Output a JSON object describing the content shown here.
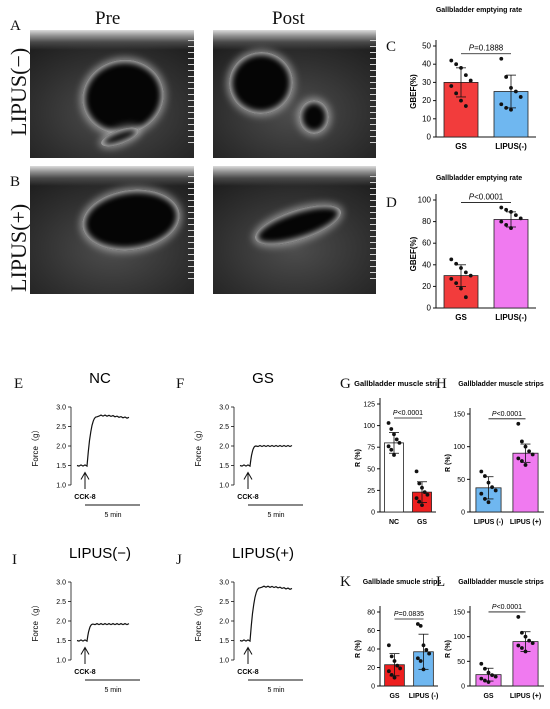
{
  "figure": {
    "panel_letters": [
      "A",
      "B",
      "C",
      "D",
      "E",
      "F",
      "G",
      "H",
      "I",
      "J",
      "K",
      "L"
    ],
    "col_pre": "Pre",
    "col_post": "Post",
    "row_minus": "LIPUS(−)",
    "row_plus": "LIPUS(+)"
  },
  "traces": [
    {
      "letter": "E",
      "title": "NC",
      "ylabel": "Force（g）",
      "ticks": [
        "3.0",
        "2.5",
        "2.0",
        "1.5",
        "1.0"
      ],
      "baseline": 1.5,
      "plateau": 2.75,
      "stim": "CCK-8",
      "scale": "5 min"
    },
    {
      "letter": "F",
      "title": "GS",
      "ylabel": "Force（g）",
      "ticks": [
        "3.0",
        "2.5",
        "2.0",
        "1.5",
        "1.0"
      ],
      "baseline": 1.5,
      "plateau": 2.0,
      "stim": "CCK-8",
      "scale": "5 min"
    },
    {
      "letter": "G",
      "title": "LIPUS(−)",
      "ylabel": "Force（g）",
      "ticks": [
        "3.0",
        "2.5",
        "2.0",
        "1.5",
        "1.0"
      ],
      "baseline": 1.5,
      "plateau": 1.92,
      "stim": "CCK-8",
      "scale": "5 min"
    },
    {
      "letter": "H",
      "title": "LIPUS(+)",
      "ylabel": "Force（g）",
      "ticks": [
        "3.0",
        "2.5",
        "2.0",
        "1.5",
        "1.0"
      ],
      "baseline": 1.5,
      "plateau": 2.85,
      "stim": "CCK-8",
      "scale": "5 min"
    }
  ],
  "chart_data": [
    {
      "letter": "C",
      "type": "bar",
      "title": "Gallbladder emptying rate",
      "ylabel": "GBEF(%)",
      "ylim": [
        0,
        50
      ],
      "yticks": [
        0,
        10,
        20,
        30,
        40,
        50
      ],
      "categories": [
        "GS",
        "LIPUS(-)"
      ],
      "values": [
        30,
        25
      ],
      "errors": [
        8,
        9
      ],
      "pvalue": "P=0.1888",
      "colors": [
        "#f23c3c",
        "#6fb7f0"
      ],
      "points": [
        [
          42,
          40,
          38,
          34,
          31,
          28,
          24,
          20,
          17
        ],
        [
          43,
          33,
          27,
          25,
          22,
          18,
          16,
          15
        ]
      ]
    },
    {
      "letter": "D",
      "type": "bar",
      "title": "Gallbladder emptying rate",
      "ylabel": "GBEF(%)",
      "ylim": [
        0,
        100
      ],
      "yticks": [
        0,
        20,
        40,
        60,
        80,
        100
      ],
      "categories": [
        "GS",
        "LIPUS(-)"
      ],
      "values": [
        30,
        82
      ],
      "errors": [
        10,
        7
      ],
      "pvalue": "P<0.0001",
      "colors": [
        "#f23c3c",
        "#f07af0"
      ],
      "points": [
        [
          45,
          41,
          37,
          33,
          30,
          27,
          23,
          18,
          10
        ],
        [
          93,
          91,
          89,
          86,
          83,
          80,
          77,
          74
        ]
      ]
    },
    {
      "letter": "I",
      "type": "bar",
      "title": "Gallbladder muscle strips",
      "ylabel": "R (%)",
      "ylim": [
        0,
        125
      ],
      "yticks": [
        0,
        25,
        50,
        75,
        100,
        125
      ],
      "categories": [
        "NC",
        "GS"
      ],
      "values": [
        80,
        23
      ],
      "errors": [
        12,
        12
      ],
      "pvalue": "P<0.0001",
      "colors": [
        "#ffffff",
        "#ee1f1f"
      ],
      "points": [
        [
          103,
          96,
          90,
          84,
          80,
          76,
          72,
          66
        ],
        [
          47,
          33,
          28,
          23,
          20,
          16,
          12,
          8
        ]
      ]
    },
    {
      "letter": "J",
      "type": "bar",
      "title": "Gallbladder muscle strips",
      "ylabel": "R (%)",
      "ylim": [
        0,
        150
      ],
      "yticks": [
        0,
        50,
        100,
        150
      ],
      "categories": [
        "LIPUS (-)",
        "LIPUS (+)"
      ],
      "values": [
        37,
        90
      ],
      "errors": [
        17,
        14
      ],
      "pvalue": "P<0.0001",
      "colors": [
        "#6fb7f0",
        "#f07af0"
      ],
      "points": [
        [
          62,
          55,
          45,
          38,
          33,
          28,
          20,
          15
        ],
        [
          135,
          108,
          100,
          93,
          88,
          82,
          78,
          72
        ]
      ]
    },
    {
      "letter": "K",
      "type": "bar",
      "title": "Gallblade smucle strips",
      "ylabel": "R (%)",
      "ylim": [
        0,
        80
      ],
      "yticks": [
        0,
        20,
        40,
        60,
        80
      ],
      "categories": [
        "GS",
        "LIPUS (-)"
      ],
      "values": [
        23,
        37
      ],
      "errors": [
        12,
        19
      ],
      "pvalue": "P=0.0835",
      "colors": [
        "#ee1f1f",
        "#6fb7f0"
      ],
      "points": [
        [
          44,
          32,
          27,
          22,
          19,
          16,
          12,
          9
        ],
        [
          67,
          65,
          44,
          39,
          35,
          30,
          27,
          18
        ]
      ]
    },
    {
      "letter": "L",
      "type": "bar",
      "title": "Gallbladder muscle strips",
      "ylabel": "R (%)",
      "ylim": [
        0,
        150
      ],
      "yticks": [
        0,
        50,
        100,
        150
      ],
      "categories": [
        "GS",
        "LIPUS (+)"
      ],
      "values": [
        23,
        90
      ],
      "errors": [
        13,
        20
      ],
      "pvalue": "P<0.0001",
      "colors": [
        "#f07af0",
        "#f07af0"
      ],
      "points": [
        [
          45,
          35,
          27,
          22,
          19,
          15,
          11,
          8
        ],
        [
          140,
          108,
          100,
          92,
          87,
          82,
          77,
          70
        ]
      ]
    }
  ]
}
